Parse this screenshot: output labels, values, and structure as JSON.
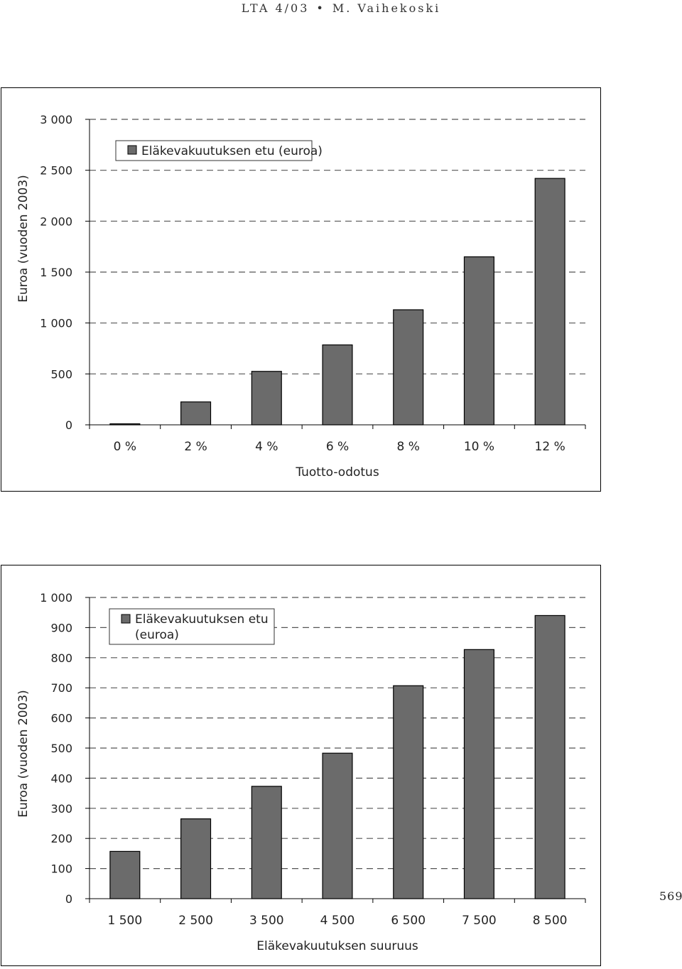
{
  "header": {
    "journal": "LTA 4/03",
    "author": "M. Vaihekoski"
  },
  "page_number": "569",
  "chart_data": [
    {
      "type": "bar",
      "categories": [
        "0 %",
        "2 %",
        "4 %",
        "6 %",
        "8 %",
        "10 %",
        "12 %"
      ],
      "series": [
        {
          "name": "Eläkevakuutuksen etu (euroa)",
          "values": [
            10,
            225,
            525,
            785,
            1130,
            1650,
            2420
          ]
        }
      ],
      "xlabel": "Tuotto-odotus",
      "ylabel": "Euroa (vuoden 2003)",
      "ylim": [
        0,
        3000
      ],
      "yticks": [
        0,
        500,
        1000,
        1500,
        2000,
        2500,
        3000
      ],
      "ytick_labels": [
        "0",
        "500",
        "1 000",
        "1 500",
        "2 000",
        "2 500",
        "3 000"
      ],
      "grid": "dashed horizontal",
      "legend": "top-left",
      "bar_color": "#6b6b6b"
    },
    {
      "type": "bar",
      "categories": [
        "1 500",
        "2 500",
        "3 500",
        "4 500",
        "6 500",
        "7 500",
        "8 500"
      ],
      "series": [
        {
          "name": "Eläkevakuutuksen etu (euroa)",
          "values": [
            157,
            265,
            373,
            483,
            707,
            827,
            940
          ]
        }
      ],
      "xlabel": "Eläkevakuutuksen suuruus",
      "ylabel": "Euroa (vuoden 2003)",
      "ylim": [
        0,
        1000
      ],
      "yticks": [
        0,
        100,
        200,
        300,
        400,
        500,
        600,
        700,
        800,
        900,
        1000
      ],
      "ytick_labels": [
        "0",
        "100",
        "200",
        "300",
        "400",
        "500",
        "600",
        "700",
        "800",
        "900",
        "1 000"
      ],
      "grid": "dashed horizontal",
      "legend": "top-left",
      "legend_lines": [
        "Eläkevakuutuksen etu",
        "(euroa)"
      ],
      "bar_color": "#6b6b6b"
    }
  ]
}
